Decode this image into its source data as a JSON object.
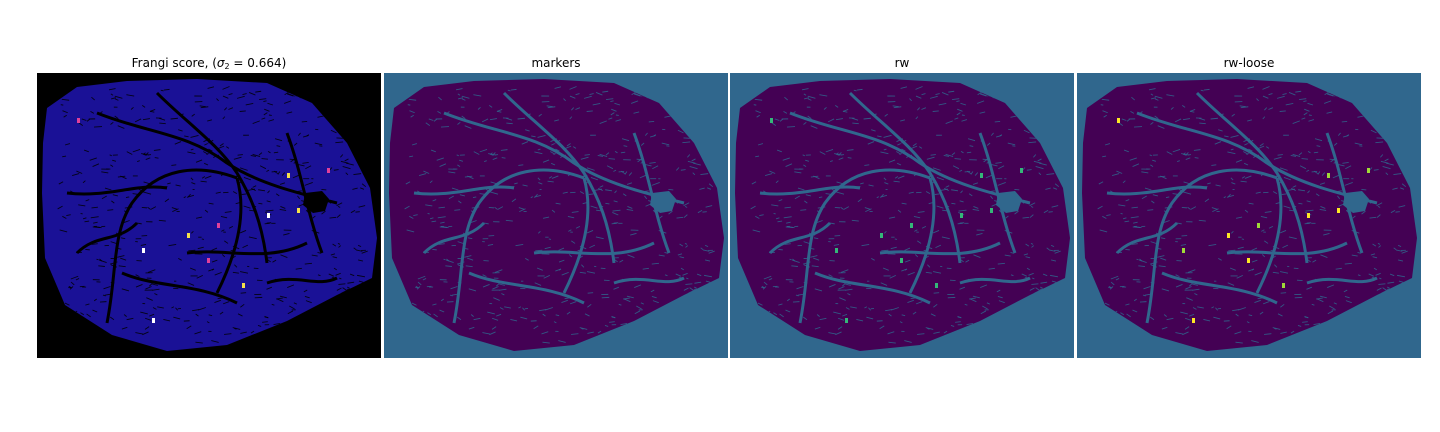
{
  "figure": {
    "panels": [
      {
        "id": "frangi",
        "title_prefix": "Frangi score, (",
        "title_symbol": "σ",
        "title_subscript": "2",
        "title_suffix": " = 0.664)",
        "background_color": "#000000",
        "tissue_color": "#1a1196",
        "vessel_color": "#000000",
        "highlight_colors": [
          "#e0409a",
          "#f5e04a",
          "#ffffff"
        ]
      },
      {
        "id": "markers",
        "title": "markers",
        "background_color": "#30678d",
        "tissue_color": "#440154",
        "vessel_color": "#30678d",
        "highlight_colors": []
      },
      {
        "id": "rw",
        "title": "rw",
        "background_color": "#30678d",
        "tissue_color": "#440154",
        "vessel_color": "#30678d",
        "highlight_colors": [
          "#35b779"
        ]
      },
      {
        "id": "rw-loose",
        "title": "rw-loose",
        "background_color": "#30678d",
        "tissue_color": "#440154",
        "vessel_color": "#30678d",
        "highlight_colors": [
          "#fde725",
          "#a0da39"
        ]
      }
    ]
  }
}
